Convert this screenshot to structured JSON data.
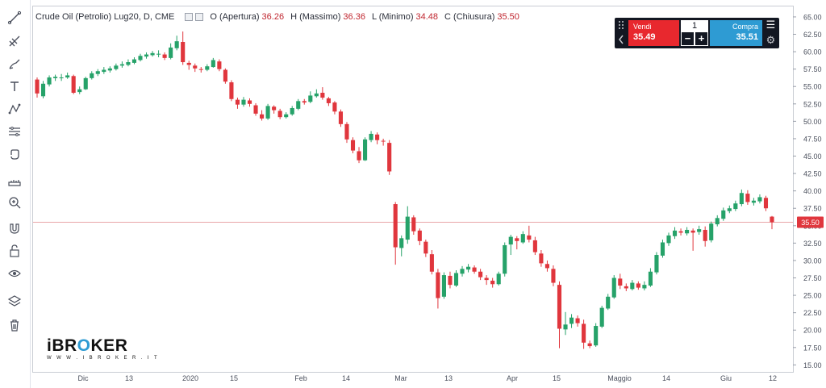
{
  "legend": {
    "title": "Crude Oil (Petrolio) Lug20, D, CME",
    "open_label": "O (Apertura)",
    "open_value": "36.26",
    "high_label": "H (Massimo)",
    "high_value": "36.36",
    "low_label": "L (Minimo)",
    "low_value": "34.48",
    "close_label": "C (Chiusura)",
    "close_value": "35.50"
  },
  "trade_panel": {
    "sell_label": "Vendi",
    "sell_price": "35.49",
    "buy_label": "Compra",
    "buy_price": "35.51",
    "quantity": "1",
    "minus": "−",
    "plus": "+"
  },
  "logo": {
    "text_before": "iBR",
    "text_o": "O",
    "text_after": "KER",
    "subtitle": "W W W . I B R O K E R . I T"
  },
  "toolbar": {
    "icons": [
      "trend-line-icon",
      "pitchfork-icon",
      "brush-icon",
      "text-icon",
      "pattern-icon",
      "measure-icon",
      "hand-icon",
      "ruler-icon",
      "zoom-icon",
      "magnet-icon",
      "lock-icon",
      "eye-icon",
      "layers-icon",
      "trash-icon"
    ]
  },
  "colors": {
    "up": "#26a269",
    "down": "#e0363d",
    "last_price_bg": "#e0363d"
  },
  "chart_data": {
    "type": "candlestick",
    "title": "",
    "price_axis": {
      "min": 14,
      "max": 66.5,
      "ticks": [
        "65.00",
        "62.50",
        "60.00",
        "57.50",
        "55.00",
        "52.50",
        "50.00",
        "47.50",
        "45.00",
        "42.50",
        "40.00",
        "37.50",
        "35.00",
        "32.50",
        "30.00",
        "27.50",
        "25.00",
        "22.50",
        "20.00",
        "17.50",
        "15.00"
      ]
    },
    "time_axis_labels": [
      "Dic",
      "13",
      "2020",
      "15",
      "Feb",
      "14",
      "Mar",
      "13",
      "Apr",
      "15",
      "Maggio",
      "14",
      "Giu",
      "12"
    ],
    "last_price": "35.50",
    "candles": [
      [
        56.0,
        54.0,
        56.3,
        53.4
      ],
      [
        53.6,
        55.4,
        55.8,
        53.3
      ],
      [
        55.3,
        56.3,
        56.6,
        55.0
      ],
      [
        56.2,
        56.4,
        56.7,
        55.8
      ],
      [
        56.3,
        56.3,
        56.8,
        55.8
      ],
      [
        56.3,
        56.6,
        57.0,
        56.1
      ],
      [
        56.5,
        54.1,
        56.7,
        53.9
      ],
      [
        54.2,
        54.6,
        55.0,
        53.9
      ],
      [
        54.6,
        56.2,
        56.4,
        54.5
      ],
      [
        56.2,
        56.9,
        57.2,
        56.0
      ],
      [
        56.8,
        57.2,
        57.5,
        56.5
      ],
      [
        57.1,
        57.4,
        57.8,
        56.8
      ],
      [
        57.3,
        57.6,
        57.9,
        57.0
      ],
      [
        57.5,
        58.0,
        58.3,
        57.3
      ],
      [
        58.0,
        58.2,
        58.6,
        57.7
      ],
      [
        58.1,
        58.5,
        58.9,
        57.9
      ],
      [
        58.4,
        58.9,
        59.2,
        58.2
      ],
      [
        58.8,
        59.4,
        59.7,
        58.6
      ],
      [
        59.3,
        59.6,
        59.9,
        59.0
      ],
      [
        59.5,
        59.8,
        60.1,
        59.3
      ],
      [
        59.7,
        59.7,
        60.2,
        59.2
      ],
      [
        59.6,
        59.1,
        59.9,
        58.8
      ],
      [
        59.1,
        60.6,
        61.2,
        58.9
      ],
      [
        60.5,
        61.5,
        62.3,
        60.2
      ],
      [
        61.4,
        58.5,
        62.9,
        58.1
      ],
      [
        58.4,
        58.1,
        58.7,
        57.4
      ],
      [
        58.0,
        57.6,
        58.3,
        57.1
      ],
      [
        57.5,
        57.4,
        57.8,
        57.0
      ],
      [
        57.4,
        57.9,
        58.2,
        57.2
      ],
      [
        57.8,
        58.8,
        59.1,
        57.7
      ],
      [
        58.6,
        57.5,
        58.9,
        57.2
      ],
      [
        57.4,
        55.7,
        57.6,
        55.4
      ],
      [
        55.6,
        53.2,
        55.9,
        52.9
      ],
      [
        53.1,
        52.4,
        53.4,
        51.8
      ],
      [
        52.4,
        53.1,
        53.5,
        52.1
      ],
      [
        53.0,
        52.5,
        53.3,
        52.1
      ],
      [
        52.3,
        51.1,
        52.6,
        50.8
      ],
      [
        51.0,
        50.4,
        51.6,
        50.1
      ],
      [
        50.4,
        52.2,
        52.5,
        50.2
      ],
      [
        52.1,
        51.6,
        52.3,
        51.1
      ],
      [
        51.5,
        50.6,
        51.8,
        50.3
      ],
      [
        50.6,
        51.0,
        51.3,
        50.4
      ],
      [
        51.0,
        51.9,
        52.2,
        50.8
      ],
      [
        51.8,
        52.9,
        53.2,
        51.6
      ],
      [
        52.9,
        52.7,
        53.2,
        52.4
      ],
      [
        52.8,
        53.7,
        54.3,
        52.6
      ],
      [
        53.6,
        54.0,
        54.6,
        53.4
      ],
      [
        54.1,
        53.4,
        54.9,
        53.1
      ],
      [
        53.3,
        52.6,
        53.5,
        52.2
      ],
      [
        52.7,
        51.4,
        52.9,
        51.0
      ],
      [
        51.4,
        49.6,
        51.7,
        49.2
      ],
      [
        49.6,
        47.4,
        49.9,
        46.9
      ],
      [
        47.3,
        45.8,
        47.7,
        45.4
      ],
      [
        45.7,
        44.4,
        46.3,
        44.0
      ],
      [
        44.4,
        47.4,
        47.7,
        44.3
      ],
      [
        47.3,
        48.2,
        48.6,
        47.0
      ],
      [
        48.1,
        47.3,
        48.4,
        46.7
      ],
      [
        47.2,
        47.1,
        47.5,
        46.5
      ],
      [
        46.9,
        42.8,
        47.3,
        42.3
      ],
      [
        38.1,
        31.9,
        38.4,
        29.4
      ],
      [
        31.8,
        33.2,
        33.6,
        30.6
      ],
      [
        33.0,
        36.3,
        37.8,
        32.4
      ],
      [
        36.2,
        34.2,
        36.5,
        33.7
      ],
      [
        34.3,
        32.8,
        34.6,
        32.2
      ],
      [
        32.7,
        31.0,
        33.0,
        30.5
      ],
      [
        30.9,
        28.4,
        31.5,
        28.0
      ],
      [
        28.3,
        24.6,
        28.8,
        23.1
      ],
      [
        24.8,
        27.9,
        28.3,
        24.5
      ],
      [
        27.8,
        26.5,
        28.4,
        26.0
      ],
      [
        26.4,
        28.2,
        28.6,
        26.2
      ],
      [
        28.1,
        28.8,
        29.2,
        27.7
      ],
      [
        28.7,
        29.1,
        29.5,
        28.3
      ],
      [
        29.0,
        28.4,
        29.3,
        28.1
      ],
      [
        28.4,
        27.6,
        28.8,
        27.2
      ],
      [
        27.5,
        27.2,
        27.9,
        26.5
      ],
      [
        27.1,
        26.6,
        27.5,
        26.1
      ],
      [
        26.6,
        28.1,
        28.4,
        26.4
      ],
      [
        28.1,
        32.2,
        32.6,
        27.7
      ],
      [
        32.3,
        33.4,
        33.7,
        30.8
      ],
      [
        33.2,
        32.8,
        33.5,
        31.6
      ],
      [
        32.6,
        33.8,
        34.2,
        32.4
      ],
      [
        33.6,
        33.0,
        35.0,
        32.6
      ],
      [
        32.9,
        31.2,
        33.4,
        30.8
      ],
      [
        31.0,
        29.6,
        31.5,
        29.1
      ],
      [
        29.5,
        28.9,
        30.0,
        28.4
      ],
      [
        28.8,
        26.8,
        29.3,
        26.3
      ],
      [
        26.5,
        20.2,
        27.0,
        17.4
      ],
      [
        20.1,
        20.8,
        22.6,
        19.3
      ],
      [
        20.9,
        21.8,
        22.3,
        20.3
      ],
      [
        21.7,
        21.0,
        22.1,
        20.5
      ],
      [
        20.9,
        18.2,
        21.5,
        17.3
      ],
      [
        18.1,
        17.7,
        18.5,
        17.4
      ],
      [
        17.8,
        20.6,
        21.0,
        17.6
      ],
      [
        20.5,
        23.2,
        23.5,
        20.3
      ],
      [
        23.1,
        24.8,
        25.2,
        22.9
      ],
      [
        24.7,
        27.5,
        27.9,
        24.5
      ],
      [
        27.4,
        26.4,
        28.1,
        25.9
      ],
      [
        26.3,
        26.0,
        26.7,
        25.6
      ],
      [
        25.9,
        26.8,
        27.2,
        25.7
      ],
      [
        26.7,
        26.1,
        27.0,
        25.8
      ],
      [
        26.0,
        26.5,
        27.0,
        25.7
      ],
      [
        26.4,
        28.4,
        28.9,
        26.2
      ],
      [
        28.3,
        30.8,
        31.2,
        28.0
      ],
      [
        30.7,
        32.6,
        33.0,
        30.4
      ],
      [
        32.5,
        33.6,
        34.0,
        32.1
      ],
      [
        33.5,
        34.3,
        34.8,
        33.1
      ],
      [
        34.2,
        34.0,
        34.6,
        33.6
      ],
      [
        33.9,
        34.4,
        34.8,
        33.6
      ],
      [
        34.3,
        34.0,
        34.6,
        31.4
      ],
      [
        34.1,
        34.5,
        35.0,
        33.7
      ],
      [
        34.4,
        32.8,
        34.9,
        32.0
      ],
      [
        32.9,
        35.3,
        35.6,
        32.6
      ],
      [
        35.2,
        36.1,
        36.5,
        34.9
      ],
      [
        36.0,
        37.2,
        37.6,
        35.7
      ],
      [
        37.1,
        37.5,
        37.9,
        36.8
      ],
      [
        37.4,
        38.2,
        38.6,
        37.1
      ],
      [
        38.1,
        39.7,
        40.2,
        37.8
      ],
      [
        39.6,
        38.4,
        40.1,
        38.0
      ],
      [
        38.3,
        38.6,
        39.0,
        37.9
      ],
      [
        38.5,
        39.1,
        39.5,
        38.2
      ],
      [
        39.0,
        37.5,
        39.3,
        37.1
      ],
      [
        36.3,
        35.5,
        36.4,
        34.5
      ]
    ]
  }
}
